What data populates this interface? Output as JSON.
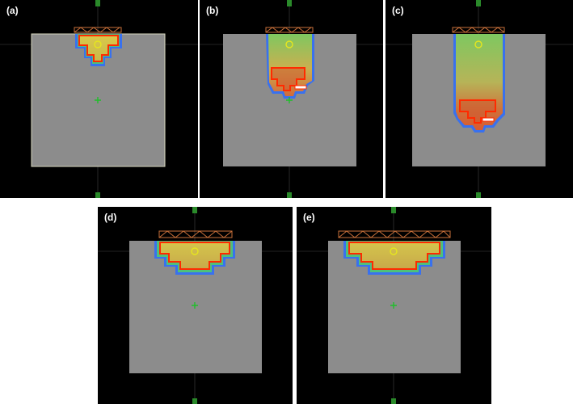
{
  "panels": [
    {
      "id": "a",
      "label": "(a)"
    },
    {
      "id": "b",
      "label": "(b)"
    },
    {
      "id": "c",
      "label": "(c)"
    },
    {
      "id": "d",
      "label": "(d)"
    },
    {
      "id": "e",
      "label": "(e)"
    }
  ],
  "colors": {
    "background": "#000000",
    "phantom": "#8c8c8c",
    "target_contour": "#ff2a00",
    "isocenter_marker": "#e6e61e",
    "center_marker": "#1fbf2a",
    "dose_low": "#2a6cff",
    "dose_high": "#d04a2a"
  }
}
